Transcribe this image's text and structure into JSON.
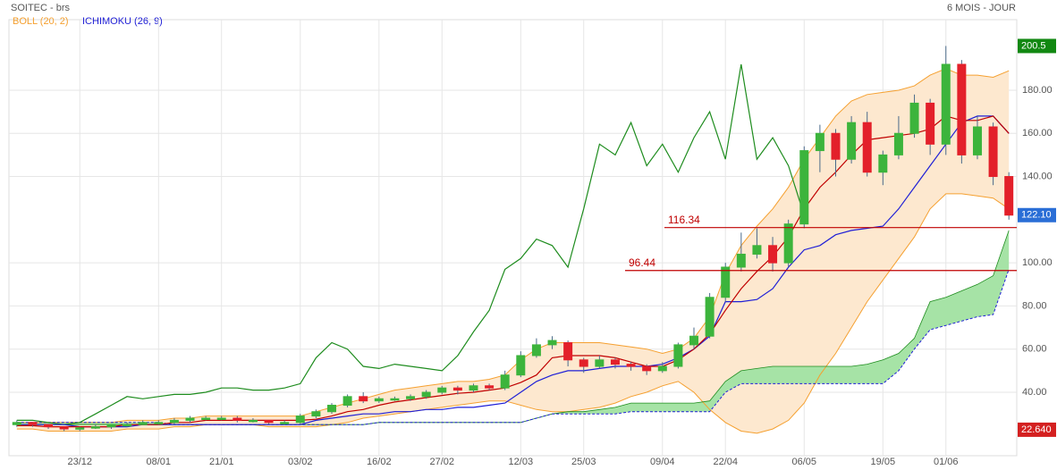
{
  "chart_data": {
    "type": "candlestick",
    "title": "SOITEC - brs",
    "period": "6 MOIS - JOUR",
    "categories": [
      null,
      null,
      null,
      null,
      "23/12",
      null,
      null,
      null,
      null,
      "08/01",
      null,
      null,
      null,
      "21/01",
      null,
      null,
      null,
      null,
      "03/02",
      null,
      null,
      null,
      null,
      "16/02",
      null,
      null,
      null,
      "27/02",
      null,
      null,
      null,
      null,
      "12/03",
      null,
      null,
      null,
      "25/03",
      null,
      null,
      null,
      null,
      "09/04",
      null,
      null,
      null,
      "22/04",
      null,
      null,
      null,
      null,
      "06/05",
      null,
      null,
      null,
      null,
      "19/05",
      null,
      null,
      null,
      "01/06",
      null,
      null,
      null,
      null
    ],
    "open": [
      25,
      26,
      25,
      24,
      23,
      23.5,
      24,
      25,
      25,
      26,
      26,
      27,
      28,
      28,
      28,
      27,
      27,
      26,
      26,
      29,
      31,
      34,
      38,
      36,
      37,
      37,
      38,
      40,
      42,
      41,
      43,
      42,
      48,
      57,
      62,
      63,
      55,
      52,
      55,
      53,
      52,
      50,
      52,
      62,
      66,
      84,
      98,
      104,
      108,
      100,
      118,
      152,
      160,
      148,
      165,
      142,
      150,
      160,
      174,
      155,
      192,
      150,
      163,
      140
    ],
    "high": [
      27,
      26,
      25,
      24,
      24,
      25,
      25,
      26,
      27,
      27,
      28,
      29,
      29,
      29,
      29,
      28,
      27,
      27,
      30,
      32,
      35,
      39,
      40,
      38,
      38,
      39,
      41,
      43,
      43,
      44,
      44,
      50,
      59,
      65,
      66,
      64,
      56,
      57,
      56,
      54,
      53,
      54,
      63,
      70,
      86,
      100,
      114,
      116,
      112,
      120,
      154,
      164,
      162,
      168,
      170,
      152,
      168,
      178,
      176,
      200.5,
      194,
      168,
      165,
      142
    ],
    "low": [
      24,
      24,
      23,
      22,
      22,
      23,
      23,
      24,
      25,
      25,
      25,
      26,
      27,
      27,
      26,
      26,
      25,
      25,
      25,
      28,
      30,
      33,
      35,
      35,
      36,
      36,
      37,
      39,
      39,
      40,
      41,
      41,
      47,
      56,
      60,
      52,
      49,
      51,
      51,
      50,
      48,
      49,
      51,
      60,
      65,
      82,
      96,
      102,
      96,
      98,
      116,
      142,
      140,
      146,
      140,
      136,
      148,
      158,
      150,
      150,
      146,
      148,
      136,
      120
    ],
    "close": [
      26,
      25,
      24,
      23,
      23.5,
      24,
      25,
      25,
      26,
      26,
      27,
      28,
      28,
      28,
      27,
      27,
      26,
      26,
      29,
      31,
      34,
      38,
      36,
      37,
      37,
      38,
      40,
      42,
      41,
      43,
      42,
      48,
      57,
      62,
      64,
      55,
      52,
      55,
      53,
      52,
      50,
      52,
      62,
      66,
      84,
      98,
      104,
      108,
      100,
      118,
      152,
      160,
      148,
      165,
      142,
      150,
      160,
      174,
      155,
      192,
      150,
      163,
      140,
      122.1
    ],
    "up_color": "#3cb43c",
    "down_color": "#e3202a",
    "bollinger": {
      "name": "BOLL (20, 2)",
      "color": "#f5a030",
      "fill": "#fde8cf",
      "middle_color": "#c00000",
      "upper": [
        26,
        26,
        26,
        26,
        26,
        26,
        26,
        27,
        27,
        27,
        28,
        28,
        29,
        29,
        29,
        29,
        29,
        29,
        29,
        31,
        33,
        35,
        37,
        39,
        41,
        42,
        43,
        44,
        45,
        45,
        46,
        48,
        55,
        60,
        63,
        63,
        63,
        63,
        62,
        61,
        60,
        58,
        60,
        65,
        75,
        95,
        108,
        117,
        125,
        135,
        148,
        158,
        168,
        175,
        178,
        179,
        180,
        182,
        187,
        190,
        187,
        187,
        186,
        189
      ],
      "middle": [
        24.5,
        24.5,
        24,
        24,
        24,
        24,
        24,
        25,
        25,
        25,
        26,
        26,
        27,
        27,
        27,
        27,
        27,
        27,
        27,
        27.5,
        29,
        31,
        32,
        34,
        35.5,
        36.5,
        37.5,
        38.5,
        39.5,
        40,
        41,
        42,
        44.5,
        48,
        56,
        57,
        57,
        57,
        56,
        54,
        52,
        52,
        55,
        60,
        67,
        78,
        88,
        96,
        103,
        112,
        125,
        135,
        142,
        150,
        157,
        158,
        159,
        160,
        162,
        168,
        166,
        166,
        168,
        160
      ],
      "lower": [
        23,
        23,
        22,
        22,
        22,
        22,
        22,
        23,
        23,
        23,
        24,
        24,
        25,
        25,
        25,
        25,
        24,
        24,
        24,
        24,
        25,
        26,
        28,
        29,
        30,
        31,
        32,
        33,
        34,
        35,
        36,
        36,
        34,
        32,
        31,
        31,
        32,
        33,
        35,
        38,
        40,
        43,
        45,
        40,
        32,
        26,
        22,
        21,
        23,
        27,
        35,
        48,
        58,
        70,
        82,
        92,
        102,
        112,
        125,
        132,
        132,
        131,
        130,
        125
      ]
    },
    "ichimoku": {
      "name": "ICHIMOKU (26, 9)",
      "color": "#1f1fd6",
      "chikou_color": "#1e8c1e",
      "cloud_color": "#a6e3a6",
      "kijun": [
        25,
        25,
        25,
        25,
        24,
        24,
        24,
        24,
        25,
        25,
        25,
        25,
        25,
        25,
        25,
        25,
        25,
        25,
        25,
        27,
        28,
        29,
        30,
        30,
        31,
        31,
        32,
        32,
        33,
        33,
        34,
        35,
        40,
        45,
        48,
        50,
        50,
        51,
        52,
        52,
        52,
        53,
        56,
        60,
        66,
        82,
        82,
        83,
        88,
        98,
        106,
        108,
        113,
        115,
        116,
        117,
        125,
        135,
        145,
        155,
        165,
        168,
        168,
        160
      ],
      "chikou": [
        27,
        27,
        26,
        25,
        26,
        30,
        34,
        38,
        37,
        38,
        39,
        39,
        40,
        42,
        42,
        41,
        41,
        42,
        44,
        56,
        63,
        60,
        52,
        51,
        53,
        52,
        51,
        50,
        57,
        68,
        78,
        97,
        102,
        111,
        108,
        98,
        125,
        155,
        150,
        165,
        145,
        155,
        142,
        158,
        170,
        148,
        192,
        148,
        158,
        145,
        122,
        null,
        null,
        null,
        null,
        null,
        null,
        null,
        null,
        null,
        null,
        null,
        null,
        null
      ],
      "span_a": [
        25,
        25,
        25,
        25,
        25,
        25,
        25,
        25,
        25,
        25,
        25,
        25,
        25,
        25,
        25,
        25,
        25,
        25,
        25,
        25,
        25,
        25,
        25,
        26,
        26,
        26,
        26,
        26,
        26,
        26,
        26,
        26,
        26,
        28,
        30,
        31,
        31,
        32,
        33,
        35,
        35,
        35,
        35,
        35,
        36,
        45,
        50,
        51,
        52,
        52,
        52,
        52,
        52,
        52,
        53,
        55,
        58,
        65,
        82,
        84,
        87,
        90,
        94,
        115
      ],
      "span_b": [
        26,
        26,
        26,
        26,
        26,
        26,
        26,
        26,
        26,
        26,
        25,
        25,
        25,
        25,
        25,
        25,
        25,
        25,
        25,
        25,
        25,
        25,
        25,
        26,
        26,
        26,
        26,
        26,
        26,
        26,
        26,
        26,
        26,
        28,
        30,
        30,
        30,
        30,
        30,
        31,
        31,
        31,
        31,
        31,
        31,
        40,
        44,
        44,
        44,
        44,
        44,
        44,
        44,
        44,
        44,
        44,
        50,
        60,
        69,
        71,
        73,
        75,
        76,
        97
      ]
    },
    "levels": [
      {
        "value": 116.34,
        "label": "116.34"
      },
      {
        "value": 96.44,
        "label": "96.44"
      }
    ],
    "level_color": "#c00000",
    "markers": [
      {
        "value": 200.5,
        "label": "200.5",
        "color": "#128812"
      },
      {
        "value": 122.1,
        "label": "122.10",
        "color": "#2a6ed6"
      },
      {
        "value": 22.64,
        "label": "22.640",
        "color": "#d42020"
      }
    ],
    "ylim": [
      10.6,
      212.7
    ],
    "yticks": [
      {
        "value": 40,
        "label": "40.00"
      },
      {
        "value": 60,
        "label": "60.00"
      },
      {
        "value": 80,
        "label": "80.00"
      },
      {
        "value": 100,
        "label": "100.00"
      },
      {
        "value": 140,
        "label": "140.00"
      },
      {
        "value": 160,
        "label": "160.00"
      },
      {
        "value": 180,
        "label": "180.00"
      }
    ],
    "grid": true
  }
}
